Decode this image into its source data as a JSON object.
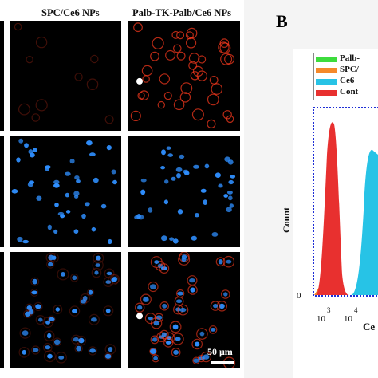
{
  "figure": {
    "columns": [
      {
        "title": "SPC/Ce6 NPs"
      },
      {
        "title": "Palb-TK-Palb/Ce6 NPs"
      }
    ],
    "scale_bar": "50 μm",
    "panel_b_label": "B",
    "flow": {
      "legend": [
        {
          "label": "Palb-",
          "color": "#3ddc3d"
        },
        {
          "label": "SPC/",
          "color": "#f5892a"
        },
        {
          "label": "Ce6",
          "color": "#27c3e6"
        },
        {
          "label": "Cont",
          "color": "#e8302f"
        }
      ],
      "ylabel": "Count",
      "xlabel": "Ce",
      "y_zero": "0",
      "x_ticks": [
        "10",
        "3",
        "10",
        "4"
      ]
    }
  },
  "colors": {
    "red_fluor": "#ff3b1e",
    "blue_fluor": "#2f8fff",
    "frame_blue": "#1f2fd6"
  },
  "chart_data": {
    "type": "area",
    "xlabel": "Ce",
    "ylabel": "Count",
    "xscale": "log",
    "series": [
      {
        "name": "Cont",
        "color": "#e8302f"
      },
      {
        "name": "SPC/",
        "color": "#f5892a"
      },
      {
        "name": "Ce6",
        "color": "#27c3e6"
      },
      {
        "name": "Palb-",
        "color": "#3ddc3d"
      }
    ]
  }
}
